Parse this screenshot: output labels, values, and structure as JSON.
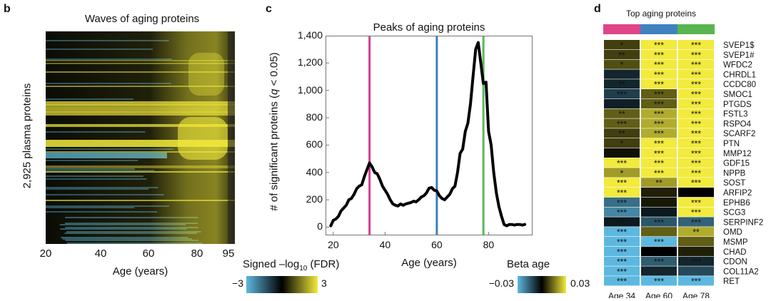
{
  "panels": {
    "b": {
      "letter": "b",
      "title": "Waves of aging proteins",
      "ylabel": "2,925 plasma proteins",
      "xlabel": "Age (years)",
      "xticks": [
        "20",
        "40",
        "60",
        "80",
        "95"
      ],
      "colorbar": {
        "label_prefix": "Signed –log",
        "label_sub": "10",
        "label_suffix": " (FDR)",
        "min_label": "−3",
        "max_label": "3",
        "colors": [
          "#5db8e0",
          "#000000",
          "#f2ea3c"
        ]
      }
    },
    "c": {
      "letter": "c",
      "colorbar": {
        "label": "Beta age",
        "min_label": "−0.03",
        "max_label": "0.03",
        "colors": [
          "#5db8e0",
          "#000000",
          "#f2ea3c"
        ]
      }
    },
    "d": {
      "letter": "d",
      "title": "Top aging proteins",
      "header_colors": [
        "#e0458a",
        "#3f82bf",
        "#59b54f"
      ]
    }
  },
  "chart_data": [
    {
      "type": "line",
      "title": "Peaks of aging proteins",
      "xlabel": "Age (years)",
      "ylabel_prefix": "# of significant proteins (",
      "ylabel_q": "q",
      "ylabel_suffix": " < 0.05)",
      "xlim": [
        17,
        97
      ],
      "ylim": [
        -60,
        1400
      ],
      "xticks": [
        20,
        40,
        60,
        80
      ],
      "yticks": [
        0,
        200,
        400,
        600,
        800,
        1000,
        1200,
        1400
      ],
      "ytick_labels": [
        "0",
        "200",
        "400",
        "600",
        "800",
        "1,000",
        "1,200",
        "1,400"
      ],
      "series": [
        {
          "color": "#000000",
          "x": [
            19,
            20,
            21,
            22,
            23,
            24,
            25,
            26,
            27,
            28,
            29,
            30,
            31,
            32,
            33,
            34,
            35,
            36,
            37,
            38,
            39,
            40,
            41,
            42,
            43,
            44,
            45,
            46,
            47,
            48,
            49,
            50,
            51,
            52,
            53,
            54,
            55,
            56,
            57,
            58,
            59,
            60,
            61,
            62,
            63,
            64,
            65,
            66,
            67,
            68,
            69,
            70,
            71,
            72,
            73,
            74,
            75,
            76,
            77,
            78,
            79,
            80,
            81,
            82,
            83,
            84,
            85,
            86,
            87,
            88,
            89,
            90,
            91,
            92,
            93,
            94
          ],
          "values": [
            10,
            50,
            60,
            80,
            120,
            140,
            160,
            200,
            210,
            240,
            280,
            300,
            310,
            370,
            420,
            470,
            440,
            400,
            390,
            350,
            300,
            270,
            240,
            200,
            170,
            160,
            155,
            170,
            160,
            170,
            175,
            180,
            190,
            185,
            200,
            220,
            230,
            250,
            285,
            290,
            270,
            265,
            230,
            210,
            200,
            220,
            240,
            280,
            300,
            400,
            540,
            570,
            700,
            760,
            900,
            1100,
            1300,
            1350,
            1200,
            1050,
            1060,
            700,
            600,
            400,
            250,
            150,
            80,
            20,
            10,
            20,
            20,
            15,
            20,
            20,
            15,
            20
          ],
          "vlines": [
            {
              "x": 34,
              "color": "#d63d8f"
            },
            {
              "x": 60,
              "color": "#3a7fc0"
            },
            {
              "x": 78,
              "color": "#5bb85a"
            }
          ]
        }
      ]
    },
    {
      "type": "heatmap",
      "title": "Top aging proteins",
      "columns": [
        "Age 34",
        "Age 60",
        "Age 78"
      ],
      "column_colors": [
        "#e0458a",
        "#3f82bf",
        "#59b54f"
      ],
      "rows": [
        "SVEP1$",
        "SVEP1#",
        "WFDC2",
        "CHRDL1",
        "CCDC80",
        "SMOC1",
        "PTGDS",
        "FSTL3",
        "RSPO4",
        "SCARF2",
        "PTN",
        "MMP12",
        "GDF15",
        "NPPB",
        "SOST",
        "ARFIP2",
        "EPHB6",
        "SCG3",
        "SERPINF2",
        "OMD",
        "MSMP",
        "CHAD",
        "CDON",
        "COL11A2",
        "RET"
      ],
      "values": [
        [
          0.008,
          0.03,
          0.03
        ],
        [
          0.008,
          0.03,
          0.03
        ],
        [
          0.01,
          0.03,
          0.03
        ],
        [
          -0.006,
          0.03,
          0.03
        ],
        [
          -0.006,
          0.03,
          0.03
        ],
        [
          -0.01,
          0.012,
          0.03
        ],
        [
          -0.005,
          0.012,
          0.03
        ],
        [
          0.012,
          0.022,
          0.03
        ],
        [
          0.012,
          0.022,
          0.03
        ],
        [
          0.008,
          0.022,
          0.03
        ],
        [
          0.008,
          0.03,
          0.03
        ],
        [
          0.002,
          0.03,
          0.03
        ],
        [
          0.03,
          0.03,
          0.03
        ],
        [
          0.02,
          0.03,
          0.03
        ],
        [
          0.03,
          0.02,
          0.03
        ],
        [
          0.03,
          0.004,
          0.0
        ],
        [
          -0.018,
          0.003,
          0.03
        ],
        [
          -0.022,
          -0.004,
          0.03
        ],
        [
          -0.004,
          -0.014,
          -0.016
        ],
        [
          -0.03,
          0.012,
          0.022
        ],
        [
          -0.03,
          -0.03,
          0.012
        ],
        [
          -0.03,
          0.0,
          0.004
        ],
        [
          -0.03,
          -0.015,
          -0.006
        ],
        [
          -0.03,
          -0.006,
          -0.012
        ],
        [
          -0.03,
          -0.03,
          -0.03
        ]
      ],
      "stars": [
        [
          "*",
          "***",
          "***"
        ],
        [
          "**",
          "***",
          "***"
        ],
        [
          "*",
          "***",
          "***"
        ],
        [
          "",
          "***",
          "***"
        ],
        [
          "**",
          "***",
          "***"
        ],
        [
          "***",
          "***",
          "***"
        ],
        [
          "",
          "***",
          "***"
        ],
        [
          "**",
          "***",
          "***"
        ],
        [
          "***",
          "***",
          "***"
        ],
        [
          "**",
          "***",
          "***"
        ],
        [
          "*",
          "***",
          "***"
        ],
        [
          "",
          "***",
          "***"
        ],
        [
          "***",
          "***",
          "***"
        ],
        [
          "*",
          "***",
          "***"
        ],
        [
          "***",
          "**",
          "***"
        ],
        [
          "***",
          "",
          ""
        ],
        [
          "***",
          "",
          "***"
        ],
        [
          "***",
          "",
          "***"
        ],
        [
          "*",
          "***",
          "***"
        ],
        [
          "***",
          "",
          "**"
        ],
        [
          "***",
          "***",
          ""
        ],
        [
          "***",
          "",
          ""
        ],
        [
          "***",
          "***",
          "***"
        ],
        [
          "***",
          "",
          ""
        ],
        [
          "***",
          "***",
          "***"
        ]
      ]
    }
  ]
}
